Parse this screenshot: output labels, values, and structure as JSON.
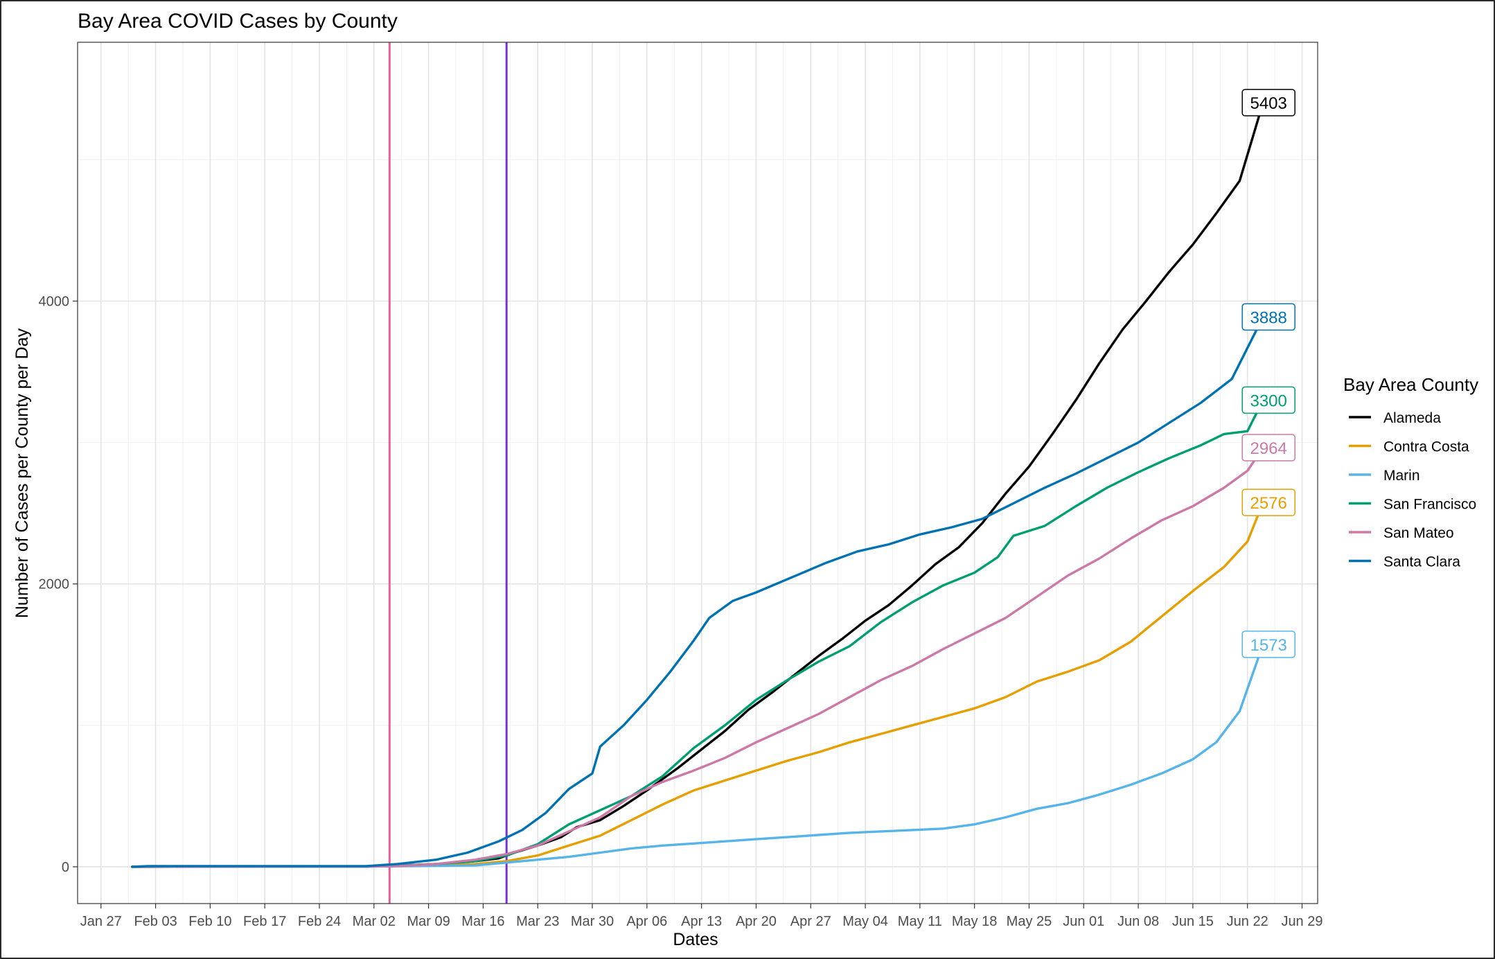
{
  "chart_data": {
    "type": "line",
    "title": "Bay Area COVID Cases by County",
    "xlabel": "Dates",
    "ylabel": "Number of Cases per County per Day",
    "legend_title": "Bay Area County",
    "legend_position": "right",
    "grid": true,
    "x_type": "date",
    "xlim": [
      "2020-01-24",
      "2020-07-01"
    ],
    "ylim": [
      -260,
      5830
    ],
    "x_ticks": [
      {
        "date": "2020-01-27",
        "label": "Jan 27"
      },
      {
        "date": "2020-02-03",
        "label": "Feb 03"
      },
      {
        "date": "2020-02-10",
        "label": "Feb 10"
      },
      {
        "date": "2020-02-17",
        "label": "Feb 17"
      },
      {
        "date": "2020-02-24",
        "label": "Feb 24"
      },
      {
        "date": "2020-03-02",
        "label": "Mar 02"
      },
      {
        "date": "2020-03-09",
        "label": "Mar 09"
      },
      {
        "date": "2020-03-16",
        "label": "Mar 16"
      },
      {
        "date": "2020-03-23",
        "label": "Mar 23"
      },
      {
        "date": "2020-03-30",
        "label": "Mar 30"
      },
      {
        "date": "2020-04-06",
        "label": "Apr 06"
      },
      {
        "date": "2020-04-13",
        "label": "Apr 13"
      },
      {
        "date": "2020-04-20",
        "label": "Apr 20"
      },
      {
        "date": "2020-04-27",
        "label": "Apr 27"
      },
      {
        "date": "2020-05-04",
        "label": "May 04"
      },
      {
        "date": "2020-05-11",
        "label": "May 11"
      },
      {
        "date": "2020-05-18",
        "label": "May 18"
      },
      {
        "date": "2020-05-25",
        "label": "May 25"
      },
      {
        "date": "2020-06-01",
        "label": "Jun 01"
      },
      {
        "date": "2020-06-08",
        "label": "Jun 08"
      },
      {
        "date": "2020-06-15",
        "label": "Jun 15"
      },
      {
        "date": "2020-06-22",
        "label": "Jun 22"
      },
      {
        "date": "2020-06-29",
        "label": "Jun 29"
      }
    ],
    "y_ticks": [
      {
        "value": 0,
        "label": "0"
      },
      {
        "value": 2000,
        "label": "2000"
      },
      {
        "value": 4000,
        "label": "4000"
      }
    ],
    "vlines": [
      {
        "date": "2020-03-04",
        "color": "#E8609A"
      },
      {
        "date": "2020-03-19",
        "color": "#7B2FD6"
      }
    ],
    "series": [
      {
        "name": "Alameda",
        "color": "#000000",
        "end_label": "5403",
        "points": [
          [
            "2020-01-31",
            0
          ],
          [
            "2020-02-15",
            2
          ],
          [
            "2020-03-01",
            3
          ],
          [
            "2020-03-05",
            8
          ],
          [
            "2020-03-10",
            20
          ],
          [
            "2020-03-15",
            40
          ],
          [
            "2020-03-18",
            60
          ],
          [
            "2020-03-20",
            100
          ],
          [
            "2020-03-23",
            150
          ],
          [
            "2020-03-26",
            210
          ],
          [
            "2020-03-28",
            280
          ],
          [
            "2020-03-31",
            330
          ],
          [
            "2020-04-03",
            430
          ],
          [
            "2020-04-06",
            540
          ],
          [
            "2020-04-08",
            620
          ],
          [
            "2020-04-10",
            700
          ],
          [
            "2020-04-13",
            830
          ],
          [
            "2020-04-16",
            960
          ],
          [
            "2020-04-19",
            1110
          ],
          [
            "2020-04-22",
            1230
          ],
          [
            "2020-04-25",
            1360
          ],
          [
            "2020-04-28",
            1490
          ],
          [
            "2020-05-01",
            1610
          ],
          [
            "2020-05-04",
            1740
          ],
          [
            "2020-05-07",
            1850
          ],
          [
            "2020-05-10",
            1990
          ],
          [
            "2020-05-13",
            2140
          ],
          [
            "2020-05-16",
            2260
          ],
          [
            "2020-05-19",
            2430
          ],
          [
            "2020-05-22",
            2640
          ],
          [
            "2020-05-25",
            2830
          ],
          [
            "2020-05-28",
            3060
          ],
          [
            "2020-05-31",
            3300
          ],
          [
            "2020-06-03",
            3560
          ],
          [
            "2020-06-06",
            3800
          ],
          [
            "2020-06-09",
            4000
          ],
          [
            "2020-06-12",
            4210
          ],
          [
            "2020-06-15",
            4400
          ],
          [
            "2020-06-18",
            4620
          ],
          [
            "2020-06-21",
            4850
          ],
          [
            "2020-06-24",
            5403
          ]
        ]
      },
      {
        "name": "Contra Costa",
        "color": "#E69F00",
        "end_label": "2576",
        "points": [
          [
            "2020-01-31",
            0
          ],
          [
            "2020-03-01",
            2
          ],
          [
            "2020-03-10",
            10
          ],
          [
            "2020-03-15",
            20
          ],
          [
            "2020-03-19",
            40
          ],
          [
            "2020-03-23",
            80
          ],
          [
            "2020-03-27",
            150
          ],
          [
            "2020-03-31",
            220
          ],
          [
            "2020-04-04",
            330
          ],
          [
            "2020-04-08",
            440
          ],
          [
            "2020-04-12",
            540
          ],
          [
            "2020-04-16",
            610
          ],
          [
            "2020-04-20",
            680
          ],
          [
            "2020-04-24",
            750
          ],
          [
            "2020-04-28",
            810
          ],
          [
            "2020-05-02",
            880
          ],
          [
            "2020-05-06",
            940
          ],
          [
            "2020-05-10",
            1000
          ],
          [
            "2020-05-14",
            1060
          ],
          [
            "2020-05-18",
            1120
          ],
          [
            "2020-05-22",
            1200
          ],
          [
            "2020-05-26",
            1310
          ],
          [
            "2020-05-30",
            1380
          ],
          [
            "2020-06-03",
            1460
          ],
          [
            "2020-06-07",
            1590
          ],
          [
            "2020-06-11",
            1770
          ],
          [
            "2020-06-15",
            1950
          ],
          [
            "2020-06-19",
            2120
          ],
          [
            "2020-06-22",
            2300
          ],
          [
            "2020-06-24",
            2576
          ]
        ]
      },
      {
        "name": "Marin",
        "color": "#56B4E9",
        "end_label": "1573",
        "points": [
          [
            "2020-01-31",
            0
          ],
          [
            "2020-03-01",
            1
          ],
          [
            "2020-03-15",
            10
          ],
          [
            "2020-03-19",
            30
          ],
          [
            "2020-03-23",
            50
          ],
          [
            "2020-03-27",
            70
          ],
          [
            "2020-03-31",
            100
          ],
          [
            "2020-04-04",
            130
          ],
          [
            "2020-04-08",
            150
          ],
          [
            "2020-04-12",
            165
          ],
          [
            "2020-04-16",
            180
          ],
          [
            "2020-04-20",
            195
          ],
          [
            "2020-04-24",
            210
          ],
          [
            "2020-04-28",
            225
          ],
          [
            "2020-05-02",
            240
          ],
          [
            "2020-05-06",
            250
          ],
          [
            "2020-05-10",
            260
          ],
          [
            "2020-05-14",
            270
          ],
          [
            "2020-05-18",
            300
          ],
          [
            "2020-05-22",
            350
          ],
          [
            "2020-05-26",
            410
          ],
          [
            "2020-05-30",
            450
          ],
          [
            "2020-06-03",
            510
          ],
          [
            "2020-06-07",
            580
          ],
          [
            "2020-06-11",
            660
          ],
          [
            "2020-06-15",
            760
          ],
          [
            "2020-06-18",
            880
          ],
          [
            "2020-06-21",
            1100
          ],
          [
            "2020-06-24",
            1573
          ]
        ]
      },
      {
        "name": "San Francisco",
        "color": "#009E73",
        "end_label": "3300",
        "points": [
          [
            "2020-01-31",
            0
          ],
          [
            "2020-03-01",
            2
          ],
          [
            "2020-03-05",
            8
          ],
          [
            "2020-03-10",
            20
          ],
          [
            "2020-03-15",
            40
          ],
          [
            "2020-03-19",
            80
          ],
          [
            "2020-03-23",
            160
          ],
          [
            "2020-03-27",
            300
          ],
          [
            "2020-03-31",
            400
          ],
          [
            "2020-04-04",
            500
          ],
          [
            "2020-04-08",
            640
          ],
          [
            "2020-04-12",
            840
          ],
          [
            "2020-04-16",
            1000
          ],
          [
            "2020-04-20",
            1180
          ],
          [
            "2020-04-24",
            1320
          ],
          [
            "2020-04-28",
            1450
          ],
          [
            "2020-05-02",
            1560
          ],
          [
            "2020-05-06",
            1730
          ],
          [
            "2020-05-10",
            1870
          ],
          [
            "2020-05-14",
            1990
          ],
          [
            "2020-05-18",
            2080
          ],
          [
            "2020-05-21",
            2190
          ],
          [
            "2020-05-23",
            2340
          ],
          [
            "2020-05-27",
            2410
          ],
          [
            "2020-05-31",
            2550
          ],
          [
            "2020-06-04",
            2680
          ],
          [
            "2020-06-08",
            2790
          ],
          [
            "2020-06-12",
            2890
          ],
          [
            "2020-06-16",
            2980
          ],
          [
            "2020-06-19",
            3060
          ],
          [
            "2020-06-22",
            3080
          ],
          [
            "2020-06-24",
            3300
          ]
        ]
      },
      {
        "name": "San Mateo",
        "color": "#CC79A7",
        "end_label": "2964",
        "points": [
          [
            "2020-01-31",
            0
          ],
          [
            "2020-03-01",
            2
          ],
          [
            "2020-03-05",
            5
          ],
          [
            "2020-03-10",
            20
          ],
          [
            "2020-03-15",
            50
          ],
          [
            "2020-03-19",
            90
          ],
          [
            "2020-03-23",
            150
          ],
          [
            "2020-03-27",
            250
          ],
          [
            "2020-03-31",
            350
          ],
          [
            "2020-04-04",
            500
          ],
          [
            "2020-04-08",
            600
          ],
          [
            "2020-04-12",
            680
          ],
          [
            "2020-04-16",
            770
          ],
          [
            "2020-04-20",
            880
          ],
          [
            "2020-04-24",
            980
          ],
          [
            "2020-04-28",
            1080
          ],
          [
            "2020-05-02",
            1200
          ],
          [
            "2020-05-06",
            1320
          ],
          [
            "2020-05-10",
            1420
          ],
          [
            "2020-05-14",
            1540
          ],
          [
            "2020-05-18",
            1650
          ],
          [
            "2020-05-22",
            1760
          ],
          [
            "2020-05-26",
            1910
          ],
          [
            "2020-05-30",
            2060
          ],
          [
            "2020-06-03",
            2180
          ],
          [
            "2020-06-07",
            2320
          ],
          [
            "2020-06-11",
            2450
          ],
          [
            "2020-06-15",
            2550
          ],
          [
            "2020-06-19",
            2680
          ],
          [
            "2020-06-22",
            2800
          ],
          [
            "2020-06-24",
            2964
          ]
        ]
      },
      {
        "name": "Santa Clara",
        "color": "#0072B2",
        "end_label": "3888",
        "points": [
          [
            "2020-01-31",
            0
          ],
          [
            "2020-02-02",
            5
          ],
          [
            "2020-03-01",
            5
          ],
          [
            "2020-03-05",
            20
          ],
          [
            "2020-03-10",
            50
          ],
          [
            "2020-03-14",
            100
          ],
          [
            "2020-03-18",
            180
          ],
          [
            "2020-03-21",
            260
          ],
          [
            "2020-03-24",
            380
          ],
          [
            "2020-03-27",
            550
          ],
          [
            "2020-03-30",
            660
          ],
          [
            "2020-03-31",
            850
          ],
          [
            "2020-04-03",
            1000
          ],
          [
            "2020-04-06",
            1180
          ],
          [
            "2020-04-09",
            1380
          ],
          [
            "2020-04-12",
            1600
          ],
          [
            "2020-04-14",
            1760
          ],
          [
            "2020-04-17",
            1880
          ],
          [
            "2020-04-20",
            1940
          ],
          [
            "2020-04-23",
            2010
          ],
          [
            "2020-04-26",
            2080
          ],
          [
            "2020-04-29",
            2150
          ],
          [
            "2020-05-03",
            2230
          ],
          [
            "2020-05-07",
            2280
          ],
          [
            "2020-05-11",
            2350
          ],
          [
            "2020-05-15",
            2400
          ],
          [
            "2020-05-19",
            2460
          ],
          [
            "2020-05-23",
            2570
          ],
          [
            "2020-05-27",
            2680
          ],
          [
            "2020-05-31",
            2780
          ],
          [
            "2020-06-04",
            2890
          ],
          [
            "2020-06-08",
            3000
          ],
          [
            "2020-06-12",
            3140
          ],
          [
            "2020-06-16",
            3280
          ],
          [
            "2020-06-20",
            3450
          ],
          [
            "2020-06-24",
            3888
          ]
        ]
      }
    ]
  }
}
